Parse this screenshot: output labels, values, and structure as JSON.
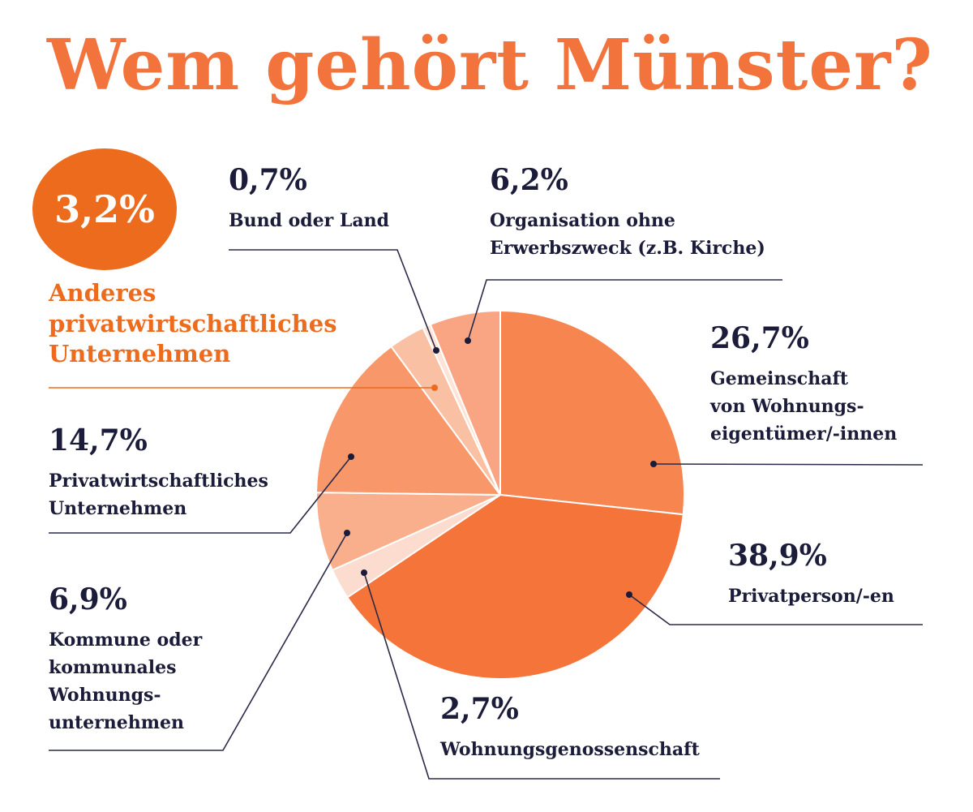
{
  "title": "Wem gehört Münster?",
  "colors": {
    "title": "#f2733c",
    "accent": "#ec6b1d",
    "text": "#1b1b3a",
    "leader": "#2a2a48"
  },
  "chart_data": {
    "type": "pie",
    "title": "Wem gehört Münster?",
    "unit": "%",
    "start_angle": 0,
    "direction": "clockwise",
    "slices": [
      {
        "label": "Gemeinschaft von Wohnungseigentümer/-innen",
        "value": 26.7,
        "value_label": "26,7%",
        "label_lines": [
          "Gemeinschaft",
          "von Wohnungs-",
          "eigentümer/-innen"
        ],
        "color": "#f7854f"
      },
      {
        "label": "Privatperson/-en",
        "value": 38.9,
        "value_label": "38,9%",
        "label_lines": [
          "Privatperson/-en"
        ],
        "color": "#f5743a"
      },
      {
        "label": "Wohnungsgenossenschaft",
        "value": 2.7,
        "value_label": "2,7%",
        "label_lines": [
          "Wohnungsgenossenschaft"
        ],
        "color": "#fcdcce"
      },
      {
        "label": "Kommune oder kommunales Wohnungsunternehmen",
        "value": 6.9,
        "value_label": "6,9%",
        "label_lines": [
          "Kommune oder",
          "kommunales",
          "Wohnungs-",
          "unternehmen"
        ],
        "color": "#f9af8c"
      },
      {
        "label": "Privatwirtschaftliches Unternehmen",
        "value": 14.7,
        "value_label": "14,7%",
        "label_lines": [
          "Privatwirtschaftliches",
          "Unternehmen"
        ],
        "color": "#f8976a"
      },
      {
        "label": "Anderes privatwirtschaftliches Unternehmen",
        "value": 3.2,
        "value_label": "3,2%",
        "label_lines": [
          "Anderes",
          "privatwirtschaftliches",
          "Unternehmen"
        ],
        "color": "#fac0a4",
        "highlight": true
      },
      {
        "label": "Bund oder Land",
        "value": 0.7,
        "value_label": "0,7%",
        "label_lines": [
          "Bund oder Land"
        ],
        "color": "#fde4d7"
      },
      {
        "label": "Organisation ohne Erwerbszweck (z.B. Kirche)",
        "value": 6.2,
        "value_label": "6,2%",
        "label_lines": [
          "Organisation ohne",
          "Erwerbszweck (z.B. Kirche)"
        ],
        "color": "#f9a584"
      }
    ]
  }
}
